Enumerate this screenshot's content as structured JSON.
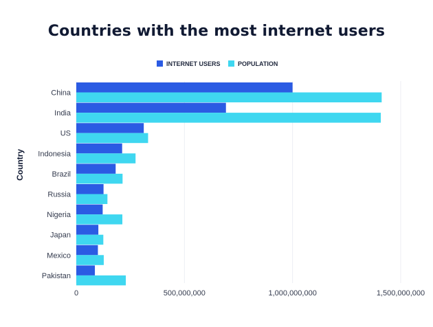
{
  "chart_data": {
    "type": "bar",
    "orientation": "horizontal",
    "title": "Countries with the most internet users",
    "ylabel": "Country",
    "xlabel": "",
    "categories": [
      "China",
      "India",
      "US",
      "Indonesia",
      "Brazil",
      "Russia",
      "Nigeria",
      "Japan",
      "Mexico",
      "Pakistan"
    ],
    "series": [
      {
        "name": "INTERNET USERS",
        "color": "#2b5be3",
        "values": [
          1000000000,
          692000000,
          312000000,
          212000000,
          182000000,
          126000000,
          122000000,
          102000000,
          100000000,
          86000000
        ]
      },
      {
        "name": "POPULATION",
        "color": "#3fd7f0",
        "values": [
          1412000000,
          1408000000,
          332000000,
          274000000,
          214000000,
          144000000,
          213000000,
          125000000,
          127000000,
          229000000
        ]
      }
    ],
    "xlim": [
      0,
      1500000000
    ],
    "xticks": [
      0,
      500000000,
      1000000000,
      1500000000
    ],
    "xtick_labels": [
      "0",
      "500,000,000",
      "1,000,000,000",
      "1,500,000,000"
    ],
    "grid": true,
    "legend_position": "top-center"
  }
}
